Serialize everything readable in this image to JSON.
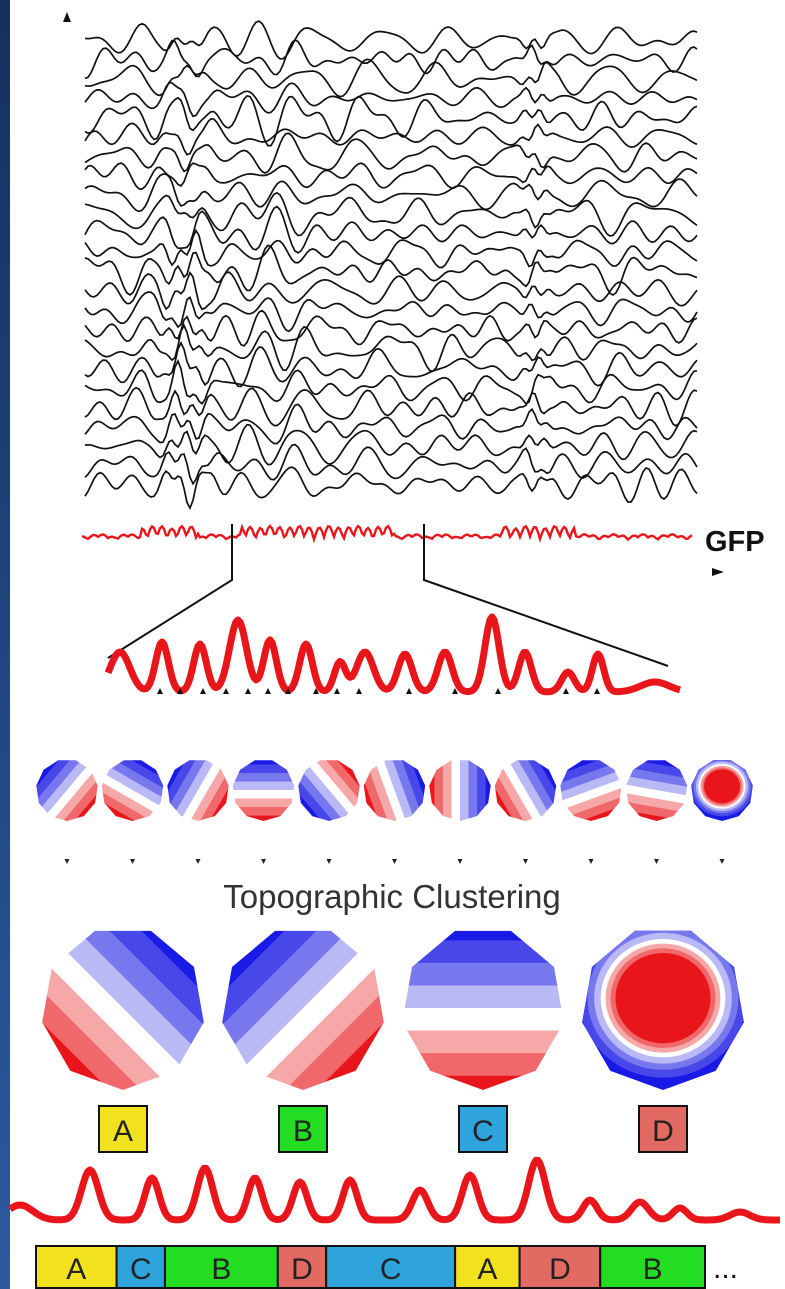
{
  "labels": {
    "gfp": "GFP",
    "clustering": "Topographic Clustering",
    "ellipsis": "..."
  },
  "colors": {
    "edge": "#1f3f7a",
    "trace": "#111111",
    "gfp": "#e8161b",
    "map_red": "#e8161b",
    "map_blue": "#1a1ae6"
  },
  "template_maps": [
    {
      "id": "A",
      "color": "#f2e21e"
    },
    {
      "id": "B",
      "color": "#22dd22"
    },
    {
      "id": "C",
      "color": "#2ea3dc"
    },
    {
      "id": "D",
      "color": "#e26a63"
    }
  ],
  "sequence": [
    {
      "id": "A",
      "span": 1.0
    },
    {
      "id": "C",
      "span": 0.6
    },
    {
      "id": "B",
      "span": 1.4
    },
    {
      "id": "D",
      "span": 0.6
    },
    {
      "id": "C",
      "span": 1.6
    },
    {
      "id": "A",
      "span": 0.8
    },
    {
      "id": "D",
      "span": 1.0
    },
    {
      "id": "B",
      "span": 1.3
    }
  ],
  "icons": {
    "marker": "triangle-marker-icon",
    "axis_arrow": "arrowhead-icon"
  }
}
